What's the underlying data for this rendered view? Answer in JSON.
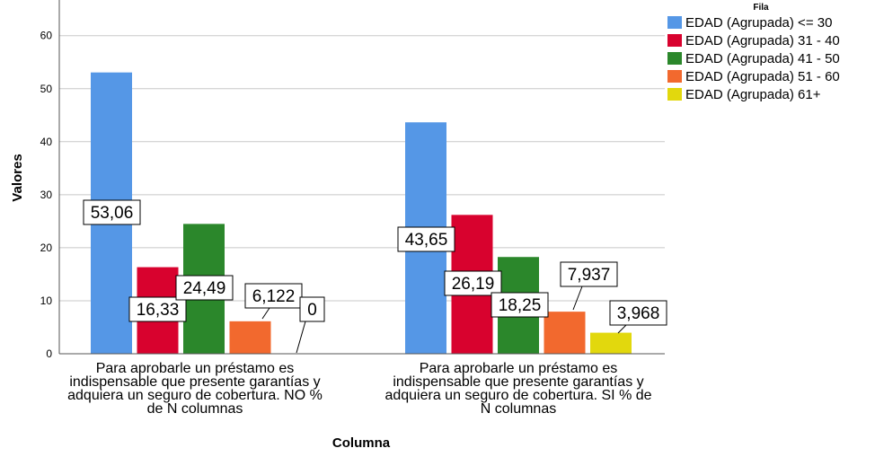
{
  "chart_data": {
    "type": "bar",
    "xlabel": "Columna",
    "ylabel": "Valores",
    "ylim": [
      0,
      65
    ],
    "yticks": [
      0,
      10,
      20,
      30,
      40,
      50,
      60
    ],
    "grid": true,
    "legend_title": "Fila",
    "legend_position": "top-right",
    "categories": [
      [
        "Para aprobarle un préstamo es",
        "indispensable que presente garantías y",
        "adquiera un seguro de cobertura. NO %",
        "de N columnas"
      ],
      [
        "Para aprobarle un préstamo es",
        "indispensable que presente garantías y",
        "adquiera un seguro de cobertura. SI % de",
        "N columnas"
      ]
    ],
    "series": [
      {
        "name": "EDAD (Agrupada) <= 30",
        "color": "#5597e6",
        "values": [
          53.06,
          43.65
        ],
        "labels": [
          "53,06",
          "43,65"
        ]
      },
      {
        "name": "EDAD (Agrupada) 31 - 40",
        "color": "#d8022e",
        "values": [
          16.33,
          26.19
        ],
        "labels": [
          "16,33",
          "26,19"
        ]
      },
      {
        "name": "EDAD (Agrupada) 41 - 50",
        "color": "#2b872b",
        "values": [
          24.49,
          18.25
        ],
        "labels": [
          "24,49",
          "18,25"
        ]
      },
      {
        "name": "EDAD (Agrupada) 51 - 60",
        "color": "#f2692e",
        "values": [
          6.122,
          7.937
        ],
        "labels": [
          "6,122",
          "7,937"
        ]
      },
      {
        "name": "EDAD (Agrupada) 61+",
        "color": "#e2d80d",
        "values": [
          0,
          3.968
        ],
        "labels": [
          "0",
          "3,968"
        ]
      }
    ]
  }
}
